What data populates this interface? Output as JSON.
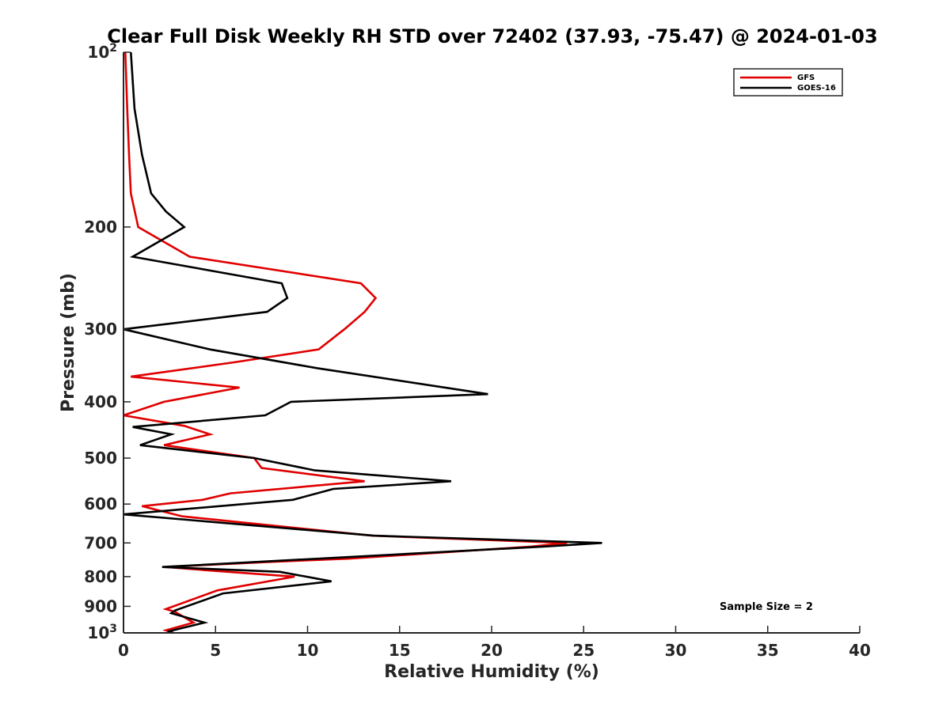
{
  "chart_data": {
    "type": "line",
    "title": "Clear Full Disk Weekly RH STD over 72402 (37.93, -75.47) @ 2024-01-03",
    "xlabel": "Relative Humidity (%)",
    "ylabel": "Pressure (mb)",
    "xlim": [
      0,
      40
    ],
    "ylim": [
      100,
      1000
    ],
    "yscale": "log",
    "y_reversed": true,
    "x_ticks": [
      0,
      5,
      10,
      15,
      20,
      25,
      30,
      35,
      40
    ],
    "x_tick_labels": [
      "0",
      "5",
      "10",
      "15",
      "20",
      "25",
      "30",
      "35",
      "40"
    ],
    "y_ticks": [
      100,
      200,
      300,
      400,
      500,
      600,
      700,
      800,
      900,
      1000
    ],
    "y_tick_labels": [
      {
        "base": "10",
        "exp": "2"
      },
      {
        "base": "200"
      },
      {
        "base": "300"
      },
      {
        "base": "400"
      },
      {
        "base": "500"
      },
      {
        "base": "600"
      },
      {
        "base": "700"
      },
      {
        "base": "800"
      },
      {
        "base": "900"
      },
      {
        "base": "10",
        "exp": "3"
      }
    ],
    "legend_position": "top-right",
    "annotation": "Sample Size = 2",
    "series": [
      {
        "name": "GFS",
        "color": "#e00000",
        "points": [
          [
            0.1,
            100
          ],
          [
            0.2,
            125
          ],
          [
            0.3,
            150
          ],
          [
            0.4,
            175
          ],
          [
            0.8,
            200
          ],
          [
            3.6,
            225
          ],
          [
            12.9,
            250
          ],
          [
            13.7,
            265
          ],
          [
            13.1,
            280
          ],
          [
            12.0,
            300
          ],
          [
            10.6,
            325
          ],
          [
            6.0,
            342
          ],
          [
            0.4,
            362
          ],
          [
            6.3,
            378
          ],
          [
            2.2,
            400
          ],
          [
            0.0,
            422
          ],
          [
            3.3,
            440
          ],
          [
            4.7,
            455
          ],
          [
            2.2,
            475
          ],
          [
            7.1,
            500
          ],
          [
            7.5,
            520
          ],
          [
            13.1,
            548
          ],
          [
            5.8,
            575
          ],
          [
            4.3,
            590
          ],
          [
            1.0,
            605
          ],
          [
            3.2,
            630
          ],
          [
            13.5,
            680
          ],
          [
            24.1,
            700
          ],
          [
            22.2,
            710
          ],
          [
            12.2,
            745
          ],
          [
            7.8,
            755
          ],
          [
            2.3,
            770
          ],
          [
            4.5,
            780
          ],
          [
            9.3,
            800
          ],
          [
            5.1,
            845
          ],
          [
            2.3,
            910
          ],
          [
            2.8,
            920
          ],
          [
            3.8,
            960
          ],
          [
            2.3,
            990
          ],
          [
            2.7,
            1000
          ]
        ]
      },
      {
        "name": "GOES-16",
        "color": "#000000",
        "points": [
          [
            0.4,
            100
          ],
          [
            0.6,
            125
          ],
          [
            1.0,
            150
          ],
          [
            1.5,
            175
          ],
          [
            2.3,
            188
          ],
          [
            3.3,
            200
          ],
          [
            0.5,
            225
          ],
          [
            8.6,
            250
          ],
          [
            8.9,
            265
          ],
          [
            7.8,
            280
          ],
          [
            0.0,
            300
          ],
          [
            4.7,
            325
          ],
          [
            10.5,
            350
          ],
          [
            19.8,
            388
          ],
          [
            9.1,
            400
          ],
          [
            7.7,
            422
          ],
          [
            0.5,
            442
          ],
          [
            2.6,
            455
          ],
          [
            0.9,
            475
          ],
          [
            7.1,
            500
          ],
          [
            10.4,
            525
          ],
          [
            17.8,
            548
          ],
          [
            11.4,
            565
          ],
          [
            9.2,
            590
          ],
          [
            0.0,
            625
          ],
          [
            13.6,
            680
          ],
          [
            26.0,
            700
          ],
          [
            22.9,
            710
          ],
          [
            2.1,
            770
          ],
          [
            8.5,
            785
          ],
          [
            11.3,
            815
          ],
          [
            5.4,
            855
          ],
          [
            2.8,
            915
          ],
          [
            2.6,
            925
          ],
          [
            4.4,
            960
          ],
          [
            2.4,
            995
          ],
          [
            2.7,
            1000
          ]
        ]
      }
    ]
  }
}
